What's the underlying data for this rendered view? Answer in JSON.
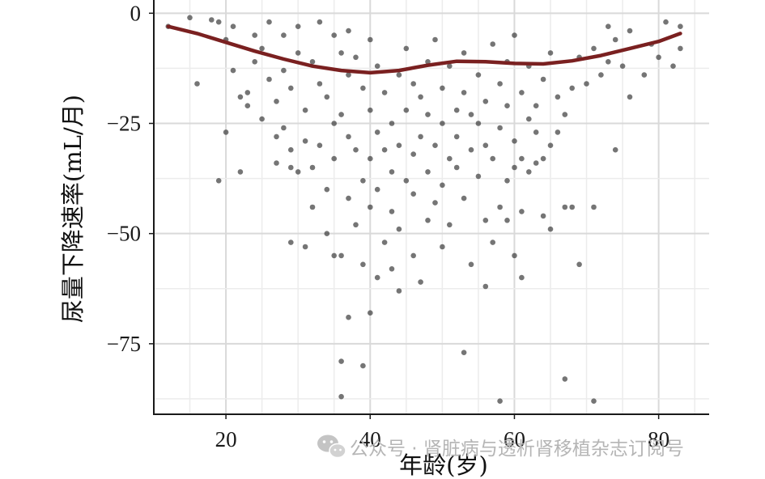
{
  "chart_data": {
    "type": "scatter",
    "title": "",
    "xlabel": "年龄(岁)",
    "ylabel": "尿量下降速率(mL/月)",
    "xlim": [
      10,
      87
    ],
    "ylim": [
      -91,
      3
    ],
    "x_ticks": [
      20,
      40,
      60,
      80
    ],
    "y_ticks": [
      0,
      -25,
      -50,
      -75
    ],
    "x_tick_labels": [
      "20",
      "40",
      "60",
      "80"
    ],
    "y_tick_labels": [
      "0",
      "−25",
      "−50",
      "−75"
    ],
    "grid": true,
    "legend": "none",
    "point_color": "#3a3a3a",
    "line_color": "#7a2020",
    "fit_line": {
      "x": [
        12,
        16,
        20,
        24,
        28,
        32,
        36,
        40,
        44,
        48,
        52,
        56,
        60,
        64,
        68,
        72,
        76,
        80,
        83
      ],
      "y": [
        -3,
        -4.6,
        -6.6,
        -8.6,
        -10.4,
        -12,
        -13,
        -13.5,
        -13,
        -11.8,
        -10.9,
        -11,
        -11.4,
        -11.5,
        -10.8,
        -9.6,
        -8,
        -6.4,
        -4.6
      ]
    },
    "series": [
      {
        "values": [
          [
            12,
            -3
          ],
          [
            15,
            -1
          ],
          [
            16,
            -16
          ],
          [
            18,
            -1.5
          ],
          [
            19,
            -38
          ],
          [
            19,
            -2
          ],
          [
            20,
            -27
          ],
          [
            20,
            -6
          ],
          [
            21,
            -3
          ],
          [
            21,
            -13
          ],
          [
            22,
            -19
          ],
          [
            22,
            -36
          ],
          [
            23,
            -18
          ],
          [
            23,
            -21
          ],
          [
            24,
            -5
          ],
          [
            24,
            -11
          ],
          [
            25,
            -24
          ],
          [
            25,
            -8
          ],
          [
            26,
            -2
          ],
          [
            26,
            -15
          ],
          [
            27,
            -28
          ],
          [
            27,
            -34
          ],
          [
            27,
            -20
          ],
          [
            28,
            -5
          ],
          [
            28,
            -13
          ],
          [
            28,
            -26
          ],
          [
            29,
            -52
          ],
          [
            29,
            -35
          ],
          [
            29,
            -31
          ],
          [
            29,
            -17
          ],
          [
            30,
            -36
          ],
          [
            30,
            -3
          ],
          [
            30,
            -9
          ],
          [
            31,
            -22
          ],
          [
            31,
            -53
          ],
          [
            31,
            -29
          ],
          [
            32,
            -44
          ],
          [
            32,
            -35
          ],
          [
            32,
            -11
          ],
          [
            33,
            -2
          ],
          [
            33,
            -30
          ],
          [
            33,
            -16
          ],
          [
            34,
            -40
          ],
          [
            34,
            -50
          ],
          [
            34,
            -19
          ],
          [
            35,
            -55
          ],
          [
            35,
            -5
          ],
          [
            35,
            -25
          ],
          [
            35,
            -33
          ],
          [
            36,
            -79
          ],
          [
            36,
            -87
          ],
          [
            36,
            -55
          ],
          [
            36,
            -9
          ],
          [
            36,
            -23
          ],
          [
            37,
            -69
          ],
          [
            37,
            -42
          ],
          [
            37,
            -28
          ],
          [
            37,
            -4
          ],
          [
            37,
            -14
          ],
          [
            38,
            -48
          ],
          [
            38,
            -31
          ],
          [
            38,
            -10
          ],
          [
            39,
            -80
          ],
          [
            39,
            -57
          ],
          [
            39,
            -17
          ],
          [
            39,
            -38
          ],
          [
            40,
            -68
          ],
          [
            40,
            -44
          ],
          [
            40,
            -22
          ],
          [
            40,
            -33
          ],
          [
            40,
            -6
          ],
          [
            41,
            -60
          ],
          [
            41,
            -40
          ],
          [
            41,
            -12
          ],
          [
            41,
            -27
          ],
          [
            42,
            -52
          ],
          [
            42,
            -31
          ],
          [
            42,
            -18
          ],
          [
            43,
            -58
          ],
          [
            43,
            -36
          ],
          [
            43,
            -45
          ],
          [
            43,
            -25
          ],
          [
            44,
            -63
          ],
          [
            44,
            -49
          ],
          [
            44,
            -14
          ],
          [
            44,
            -30
          ],
          [
            45,
            -38
          ],
          [
            45,
            -22
          ],
          [
            45,
            -8
          ],
          [
            46,
            -55
          ],
          [
            46,
            -41
          ],
          [
            46,
            -32
          ],
          [
            46,
            -16
          ],
          [
            47,
            -61
          ],
          [
            47,
            -28
          ],
          [
            47,
            -19
          ],
          [
            48,
            -47
          ],
          [
            48,
            -36
          ],
          [
            48,
            -11
          ],
          [
            48,
            -23
          ],
          [
            49,
            -43
          ],
          [
            49,
            -30
          ],
          [
            49,
            -6
          ],
          [
            50,
            -53
          ],
          [
            50,
            -39
          ],
          [
            50,
            -25
          ],
          [
            50,
            -17
          ],
          [
            51,
            -48
          ],
          [
            51,
            -33
          ],
          [
            51,
            -12
          ],
          [
            52,
            -35
          ],
          [
            52,
            -22
          ],
          [
            52,
            -28
          ],
          [
            53,
            -77
          ],
          [
            53,
            -42
          ],
          [
            53,
            -18
          ],
          [
            53,
            -9
          ],
          [
            54,
            -57
          ],
          [
            54,
            -31
          ],
          [
            54,
            -23
          ],
          [
            55,
            -37
          ],
          [
            55,
            -25
          ],
          [
            55,
            -14
          ],
          [
            56,
            -62
          ],
          [
            56,
            -47
          ],
          [
            56,
            -30
          ],
          [
            56,
            -20
          ],
          [
            57,
            -52
          ],
          [
            57,
            -33
          ],
          [
            57,
            -7
          ],
          [
            58,
            -88
          ],
          [
            58,
            -44
          ],
          [
            58,
            -26
          ],
          [
            58,
            -16
          ],
          [
            59,
            -47
          ],
          [
            59,
            -38
          ],
          [
            59,
            -21
          ],
          [
            59,
            -11
          ],
          [
            60,
            -55
          ],
          [
            60,
            -35
          ],
          [
            60,
            -29
          ],
          [
            60,
            -5
          ],
          [
            61,
            -60
          ],
          [
            61,
            -45
          ],
          [
            61,
            -33
          ],
          [
            61,
            -18
          ],
          [
            62,
            -36
          ],
          [
            62,
            -24
          ],
          [
            62,
            -12
          ],
          [
            63,
            -34
          ],
          [
            63,
            -27
          ],
          [
            63,
            -21
          ],
          [
            64,
            -46
          ],
          [
            64,
            -33
          ],
          [
            64,
            -15
          ],
          [
            65,
            -49
          ],
          [
            65,
            -30
          ],
          [
            65,
            -9
          ],
          [
            66,
            -27
          ],
          [
            66,
            -19
          ],
          [
            67,
            -83
          ],
          [
            67,
            -44
          ],
          [
            67,
            -23
          ],
          [
            68,
            -44
          ],
          [
            68,
            -17
          ],
          [
            69,
            -57
          ],
          [
            69,
            -10
          ],
          [
            70,
            -16
          ],
          [
            71,
            -88
          ],
          [
            71,
            -44
          ],
          [
            71,
            -8
          ],
          [
            72,
            -14
          ],
          [
            73,
            -3
          ],
          [
            73,
            -11
          ],
          [
            74,
            -31
          ],
          [
            74,
            -6
          ],
          [
            75,
            -12
          ],
          [
            76,
            -19
          ],
          [
            76,
            -4
          ],
          [
            78,
            -14
          ],
          [
            79,
            -7
          ],
          [
            80,
            -10
          ],
          [
            81,
            -2
          ],
          [
            82,
            -12
          ],
          [
            83,
            -8
          ],
          [
            83,
            -3
          ]
        ]
      }
    ]
  },
  "watermark": {
    "text": "公众号 · 肾脏病与透析肾移植杂志订阅号",
    "icon": "wechat-icon"
  }
}
